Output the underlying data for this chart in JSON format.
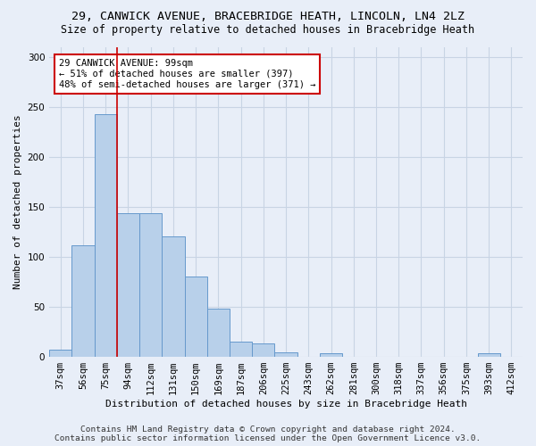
{
  "title1": "29, CANWICK AVENUE, BRACEBRIDGE HEATH, LINCOLN, LN4 2LZ",
  "title2": "Size of property relative to detached houses in Bracebridge Heath",
  "xlabel": "Distribution of detached houses by size in Bracebridge Heath",
  "ylabel": "Number of detached properties",
  "categories": [
    "37sqm",
    "56sqm",
    "75sqm",
    "94sqm",
    "112sqm",
    "131sqm",
    "150sqm",
    "169sqm",
    "187sqm",
    "206sqm",
    "225sqm",
    "243sqm",
    "262sqm",
    "281sqm",
    "300sqm",
    "318sqm",
    "337sqm",
    "356sqm",
    "375sqm",
    "393sqm",
    "412sqm"
  ],
  "values": [
    7,
    111,
    243,
    143,
    143,
    120,
    80,
    48,
    15,
    13,
    4,
    0,
    3,
    0,
    0,
    0,
    0,
    0,
    0,
    3,
    0
  ],
  "bar_color": "#b8d0ea",
  "bar_edge_color": "#6699cc",
  "grid_color": "#c8d4e4",
  "bg_color": "#e8eef8",
  "vline_color": "#cc0000",
  "annotation_text": "29 CANWICK AVENUE: 99sqm\n← 51% of detached houses are smaller (397)\n48% of semi-detached houses are larger (371) →",
  "annotation_box_color": "#ffffff",
  "annotation_box_edge": "#cc0000",
  "footer1": "Contains HM Land Registry data © Crown copyright and database right 2024.",
  "footer2": "Contains public sector information licensed under the Open Government Licence v3.0.",
  "ylim": [
    0,
    310
  ],
  "title1_fontsize": 9.5,
  "title2_fontsize": 8.5,
  "axis_label_fontsize": 8,
  "tick_fontsize": 7.5,
  "footer_fontsize": 6.8,
  "annot_fontsize": 7.5
}
